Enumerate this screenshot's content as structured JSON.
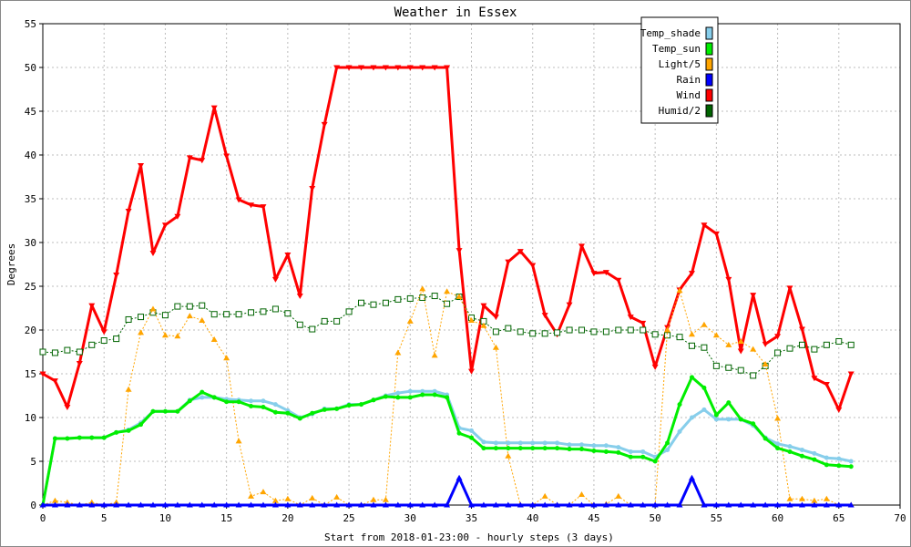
{
  "chart_data": {
    "type": "line",
    "title": "Weather in Essex",
    "xlabel": "Start from 2018-01-23:00 - hourly steps (3 days)",
    "ylabel": "Degrees",
    "xlim": [
      0,
      70
    ],
    "ylim": [
      0,
      55
    ],
    "x_ticks": [
      0,
      5,
      10,
      15,
      20,
      25,
      30,
      35,
      40,
      45,
      50,
      55,
      60,
      65,
      70
    ],
    "y_ticks": [
      0,
      5,
      10,
      15,
      20,
      25,
      30,
      35,
      40,
      45,
      50,
      55
    ],
    "grid": true,
    "legend_position": "top-right",
    "x": [
      0,
      1,
      2,
      3,
      4,
      5,
      6,
      7,
      8,
      9,
      10,
      11,
      12,
      13,
      14,
      15,
      16,
      17,
      18,
      19,
      20,
      21,
      22,
      23,
      24,
      25,
      26,
      27,
      28,
      29,
      30,
      31,
      32,
      33,
      34,
      35,
      36,
      37,
      38,
      39,
      40,
      41,
      42,
      43,
      44,
      45,
      46,
      47,
      48,
      49,
      50,
      51,
      52,
      53,
      54,
      55,
      56,
      57,
      58,
      59,
      60,
      61,
      62,
      63,
      64,
      65,
      66
    ],
    "series": [
      {
        "name": "Temp_shade",
        "color": "#87ceeb",
        "line_style": "solid",
        "line_width": 3,
        "marker": "circle",
        "values": [
          0,
          7.6,
          7.6,
          7.7,
          7.7,
          7.7,
          8.3,
          8.6,
          9.4,
          10.7,
          10.7,
          10.7,
          12,
          12.3,
          12.3,
          12.1,
          12,
          11.9,
          11.9,
          11.5,
          10.8,
          10,
          10.4,
          11,
          11,
          11.5,
          11.5,
          12,
          12.5,
          12.8,
          13,
          13,
          13,
          12.6,
          8.8,
          8.5,
          7.2,
          7.1,
          7.1,
          7.1,
          7.1,
          7.1,
          7.1,
          6.9,
          6.9,
          6.8,
          6.8,
          6.6,
          6.1,
          6.1,
          5.5,
          6.3,
          8.4,
          10,
          10.9,
          9.8,
          9.8,
          9.8,
          9.1,
          7.7,
          7,
          6.7,
          6.3,
          5.9,
          5.4,
          5.3,
          5
        ]
      },
      {
        "name": "Temp_sun",
        "color": "#00ee00",
        "line_style": "solid",
        "line_width": 3,
        "marker": "circle",
        "values": [
          0,
          7.6,
          7.6,
          7.7,
          7.7,
          7.7,
          8.3,
          8.5,
          9.2,
          10.7,
          10.7,
          10.7,
          11.9,
          12.9,
          12.3,
          11.8,
          11.8,
          11.3,
          11.2,
          10.6,
          10.5,
          9.9,
          10.5,
          10.9,
          11,
          11.4,
          11.5,
          12,
          12.4,
          12.3,
          12.3,
          12.6,
          12.6,
          12.3,
          8.2,
          7.7,
          6.5,
          6.5,
          6.5,
          6.5,
          6.5,
          6.5,
          6.5,
          6.4,
          6.4,
          6.2,
          6.1,
          6,
          5.5,
          5.5,
          5,
          7.1,
          11.5,
          14.6,
          13.4,
          10.3,
          11.7,
          9.8,
          9.3,
          7.6,
          6.5,
          6.1,
          5.6,
          5.2,
          4.6,
          4.5,
          4.4
        ]
      },
      {
        "name": "Light/5",
        "color": "#ffa500",
        "line_style": "dotted",
        "line_width": 1,
        "marker": "triangle-up",
        "values": [
          0,
          0.5,
          0.3,
          0,
          0.3,
          0,
          0.3,
          13.2,
          19.7,
          22.4,
          19.4,
          19.3,
          21.6,
          21.1,
          18.9,
          16.8,
          7.3,
          1,
          1.5,
          0.5,
          0.7,
          0,
          0.8,
          0,
          0.9,
          0,
          0,
          0.6,
          0.6,
          17.4,
          21,
          24.7,
          17.1,
          24.4,
          23.8,
          21.1,
          20.5,
          18,
          5.6,
          0,
          0,
          1,
          0,
          0,
          1.2,
          0,
          0.1,
          1,
          0,
          0,
          0,
          20,
          24.5,
          19.5,
          20.6,
          19.4,
          18.3,
          18.7,
          17.8,
          16.1,
          9.9,
          0.7,
          0.7,
          0.5,
          0.7,
          0,
          0
        ]
      },
      {
        "name": "Rain",
        "color": "#0000ff",
        "line_style": "solid",
        "line_width": 3,
        "marker": "triangle-up",
        "values": [
          0,
          0,
          0,
          0,
          0,
          0,
          0,
          0,
          0,
          0,
          0,
          0,
          0,
          0,
          0,
          0,
          0,
          0,
          0,
          0,
          0,
          0,
          0,
          0,
          0,
          0,
          0,
          0,
          0,
          0,
          0,
          0,
          0,
          0,
          3.1,
          0,
          0,
          0,
          0,
          0,
          0,
          0,
          0,
          0,
          0,
          0,
          0,
          0,
          0,
          0,
          0,
          0,
          0,
          3.1,
          0,
          0,
          0,
          0,
          0,
          0,
          0,
          0,
          0,
          0,
          0,
          0,
          0
        ]
      },
      {
        "name": "Wind",
        "color": "#ff0000",
        "line_style": "solid",
        "line_width": 3,
        "marker": "triangle-down",
        "values": [
          15,
          14.2,
          11.2,
          16.2,
          22.8,
          19.8,
          26.3,
          33.6,
          38.8,
          28.8,
          32,
          33,
          39.7,
          39.4,
          45.4,
          39.9,
          34.9,
          34.3,
          34.1,
          25.8,
          28.6,
          23.9,
          36.2,
          43.5,
          50,
          50,
          50,
          50,
          50,
          50,
          50,
          50,
          50,
          50,
          29.1,
          15.3,
          22.8,
          21.5,
          27.8,
          29,
          27.4,
          21.7,
          19.5,
          22.9,
          29.6,
          26.5,
          26.6,
          25.7,
          21.5,
          20.8,
          15.8,
          20.3,
          24.6,
          26.5,
          32,
          31,
          25.8,
          17.6,
          24,
          18.4,
          19.3,
          24.8,
          20.1,
          14.5,
          13.8,
          10.9,
          15
        ]
      },
      {
        "name": "Humid/2",
        "color": "#006400",
        "line_style": "dotted",
        "line_width": 1,
        "marker": "square",
        "values": [
          17.5,
          17.4,
          17.7,
          17.5,
          18.3,
          18.8,
          19,
          21.2,
          21.5,
          22,
          21.7,
          22.7,
          22.7,
          22.8,
          21.8,
          21.8,
          21.8,
          22,
          22.1,
          22.4,
          21.9,
          20.6,
          20.1,
          21,
          21,
          22.1,
          23.1,
          22.9,
          23.1,
          23.5,
          23.6,
          23.7,
          23.9,
          23,
          23.8,
          21.4,
          21,
          19.8,
          20.2,
          19.8,
          19.6,
          19.6,
          19.7,
          20,
          20,
          19.8,
          19.8,
          20,
          20,
          20,
          19.5,
          19.4,
          19.2,
          18.2,
          18,
          15.9,
          15.7,
          15.4,
          14.8,
          15.9,
          17.4,
          17.9,
          18.3,
          17.8,
          18.3,
          18.7,
          18.3
        ]
      }
    ]
  }
}
